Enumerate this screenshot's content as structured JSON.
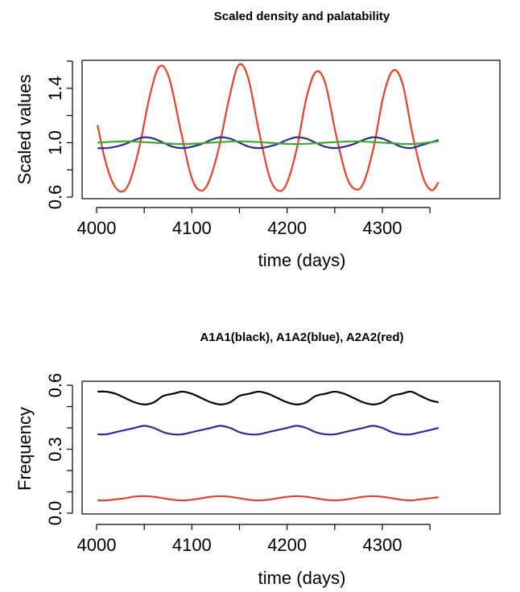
{
  "chart_data": [
    {
      "type": "line",
      "title": "Scaled density and palatability",
      "xlabel": "time (days)",
      "ylabel": "Scaled values",
      "xlim": [
        4000,
        4360
      ],
      "ylim": [
        0.6,
        1.6
      ],
      "xticks": [
        4000,
        4050,
        4100,
        4150,
        4200,
        4250,
        4300,
        4350
      ],
      "xtick_labels": [
        "4000",
        "4100",
        "4200",
        "4300"
      ],
      "yticks": [
        0.6,
        0.8,
        1.0,
        1.2,
        1.4,
        1.6
      ],
      "ytick_labels": [
        "0.6",
        "1.0",
        "1.4"
      ],
      "series": [
        {
          "color": "#e8402b",
          "x": [
            4001,
            4008,
            4016,
            4025,
            4034,
            4045,
            4056,
            4066,
            4076,
            4088,
            4099,
            4108,
            4117,
            4128,
            4139,
            4149,
            4159,
            4170,
            4181,
            4190,
            4199,
            4210,
            4220,
            4230,
            4240,
            4251,
            4262,
            4271,
            4280,
            4291,
            4301,
            4311,
            4321,
            4332,
            4343,
            4352,
            4359
          ],
          "y": [
            1.13,
            0.9,
            0.72,
            0.64,
            0.7,
            0.97,
            1.35,
            1.56,
            1.48,
            1.1,
            0.76,
            0.65,
            0.7,
            0.95,
            1.32,
            1.57,
            1.48,
            1.1,
            0.76,
            0.65,
            0.69,
            0.95,
            1.32,
            1.52,
            1.44,
            1.07,
            0.76,
            0.66,
            0.7,
            0.97,
            1.34,
            1.53,
            1.44,
            1.05,
            0.74,
            0.65,
            0.71
          ]
        },
        {
          "color": "#2c2f8f",
          "x": [
            4001,
            4010,
            4020,
            4030,
            4040,
            4050,
            4060,
            4070,
            4080,
            4090,
            4100,
            4110,
            4120,
            4130,
            4140,
            4150,
            4160,
            4170,
            4180,
            4190,
            4200,
            4210,
            4220,
            4230,
            4240,
            4250,
            4260,
            4270,
            4280,
            4290,
            4300,
            4310,
            4320,
            4330,
            4340,
            4350,
            4359
          ],
          "y": [
            0.96,
            0.96,
            0.97,
            0.99,
            1.02,
            1.04,
            1.03,
            1.0,
            0.97,
            0.96,
            0.97,
            0.99,
            1.02,
            1.04,
            1.03,
            1.0,
            0.97,
            0.96,
            0.97,
            0.99,
            1.02,
            1.04,
            1.03,
            1.0,
            0.97,
            0.96,
            0.97,
            0.99,
            1.02,
            1.04,
            1.03,
            1.0,
            0.97,
            0.96,
            0.98,
            1.0,
            1.02
          ]
        },
        {
          "color": "#3aaa35",
          "x": [
            4001,
            4030,
            4060,
            4090,
            4120,
            4150,
            4180,
            4210,
            4240,
            4270,
            4300,
            4330,
            4359
          ],
          "y": [
            1.0,
            1.01,
            1.0,
            0.99,
            1.0,
            1.01,
            1.0,
            0.99,
            1.0,
            1.01,
            1.0,
            0.99,
            1.01
          ]
        }
      ]
    },
    {
      "type": "line",
      "title": "A1A1(black), A1A2(blue), A2A2(red)",
      "xlabel": "time (days)",
      "ylabel": "Frequency",
      "xlim": [
        4000,
        4360
      ],
      "ylim": [
        0.0,
        0.6
      ],
      "xticks": [
        4000,
        4050,
        4100,
        4150,
        4200,
        4250,
        4300,
        4350
      ],
      "xtick_labels": [
        "4000",
        "4100",
        "4200",
        "4300"
      ],
      "yticks": [
        0.0,
        0.1,
        0.2,
        0.3,
        0.4,
        0.5,
        0.6
      ],
      "ytick_labels": [
        "0.0",
        "0.3",
        "0.6"
      ],
      "series": [
        {
          "color": "#000000",
          "x": [
            4001,
            4010,
            4020,
            4030,
            4040,
            4050,
            4060,
            4070,
            4080,
            4090,
            4100,
            4110,
            4120,
            4130,
            4140,
            4150,
            4160,
            4170,
            4180,
            4190,
            4200,
            4210,
            4220,
            4230,
            4240,
            4250,
            4260,
            4270,
            4280,
            4290,
            4300,
            4310,
            4320,
            4330,
            4340,
            4350,
            4359
          ],
          "y": [
            0.57,
            0.57,
            0.56,
            0.54,
            0.52,
            0.51,
            0.52,
            0.55,
            0.56,
            0.57,
            0.56,
            0.54,
            0.52,
            0.51,
            0.52,
            0.55,
            0.56,
            0.57,
            0.56,
            0.54,
            0.52,
            0.51,
            0.52,
            0.55,
            0.56,
            0.57,
            0.56,
            0.54,
            0.52,
            0.51,
            0.52,
            0.55,
            0.56,
            0.57,
            0.55,
            0.53,
            0.52
          ]
        },
        {
          "color": "#2c2f8f",
          "x": [
            4001,
            4010,
            4020,
            4030,
            4040,
            4050,
            4060,
            4070,
            4080,
            4090,
            4100,
            4110,
            4120,
            4130,
            4140,
            4150,
            4160,
            4170,
            4180,
            4190,
            4200,
            4210,
            4220,
            4230,
            4240,
            4250,
            4260,
            4270,
            4280,
            4290,
            4300,
            4310,
            4320,
            4330,
            4340,
            4350,
            4359
          ],
          "y": [
            0.37,
            0.37,
            0.38,
            0.39,
            0.4,
            0.41,
            0.4,
            0.38,
            0.37,
            0.37,
            0.38,
            0.39,
            0.4,
            0.41,
            0.4,
            0.38,
            0.37,
            0.37,
            0.38,
            0.39,
            0.4,
            0.41,
            0.4,
            0.38,
            0.37,
            0.37,
            0.38,
            0.39,
            0.4,
            0.41,
            0.4,
            0.38,
            0.37,
            0.37,
            0.38,
            0.39,
            0.4
          ]
        },
        {
          "color": "#e8402b",
          "x": [
            4001,
            4010,
            4020,
            4030,
            4040,
            4050,
            4060,
            4070,
            4080,
            4090,
            4100,
            4110,
            4120,
            4130,
            4140,
            4150,
            4160,
            4170,
            4180,
            4190,
            4200,
            4210,
            4220,
            4230,
            4240,
            4250,
            4260,
            4270,
            4280,
            4290,
            4300,
            4310,
            4320,
            4330,
            4340,
            4350,
            4359
          ],
          "y": [
            0.06,
            0.06,
            0.065,
            0.07,
            0.078,
            0.08,
            0.077,
            0.07,
            0.063,
            0.06,
            0.063,
            0.07,
            0.077,
            0.08,
            0.077,
            0.07,
            0.063,
            0.06,
            0.063,
            0.07,
            0.077,
            0.08,
            0.077,
            0.07,
            0.063,
            0.06,
            0.063,
            0.07,
            0.077,
            0.08,
            0.077,
            0.07,
            0.063,
            0.06,
            0.065,
            0.07,
            0.075
          ]
        }
      ]
    }
  ]
}
